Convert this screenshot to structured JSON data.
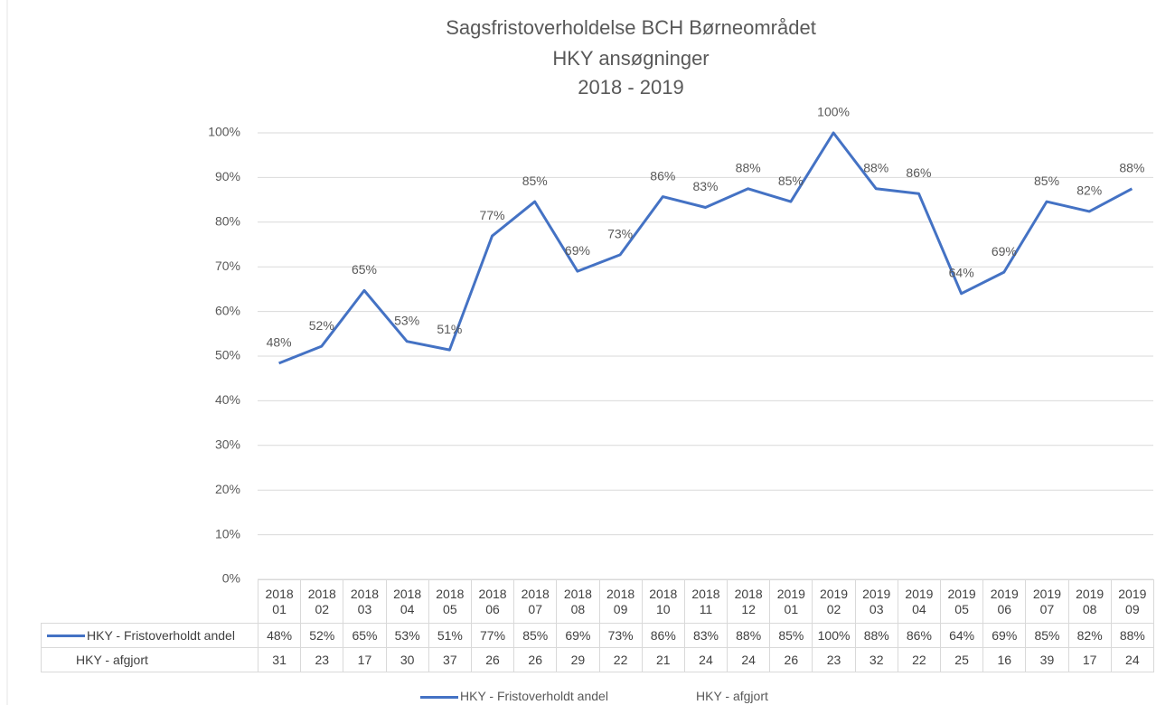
{
  "chart_data": {
    "type": "line",
    "title": [
      "Sagsfristoverholdelse BCH Børneområdet",
      "HKY ansøgninger",
      "2018 - 2019"
    ],
    "categories": [
      "2018 01",
      "2018 02",
      "2018 03",
      "2018 04",
      "2018 05",
      "2018 06",
      "2018 07",
      "2018 08",
      "2018 09",
      "2018 10",
      "2018 11",
      "2018 12",
      "2019 01",
      "2019 02",
      "2019 03",
      "2019 04",
      "2019 05",
      "2019 06",
      "2019 07",
      "2019 08",
      "2019 09"
    ],
    "series": [
      {
        "name": "HKY - Fristoverholdt andel",
        "color": "#4472c4",
        "values": [
          48.4,
          52.2,
          64.7,
          53.3,
          51.4,
          76.9,
          84.6,
          69.0,
          72.7,
          85.7,
          83.3,
          87.5,
          84.6,
          100,
          87.5,
          86.4,
          64.0,
          68.8,
          84.6,
          82.4,
          87.5
        ],
        "value_labels": [
          "48%",
          "52%",
          "65%",
          "53%",
          "51%",
          "77%",
          "85%",
          "69%",
          "73%",
          "86%",
          "83%",
          "88%",
          "85%",
          "100%",
          "88%",
          "86%",
          "64%",
          "69%",
          "85%",
          "82%",
          "88%"
        ]
      },
      {
        "name": "HKY - afgjort",
        "values": [
          31,
          23,
          17,
          30,
          37,
          26,
          26,
          29,
          22,
          21,
          24,
          24,
          26,
          23,
          32,
          22,
          25,
          16,
          39,
          17,
          24
        ]
      }
    ],
    "ylim": [
      0,
      100
    ],
    "yticks": [
      {
        "value": 0,
        "label": "0%"
      },
      {
        "value": 10,
        "label": "10%"
      },
      {
        "value": 20,
        "label": "20%"
      },
      {
        "value": 30,
        "label": "30%"
      },
      {
        "value": 40,
        "label": "40%"
      },
      {
        "value": 50,
        "label": "50%"
      },
      {
        "value": 60,
        "label": "60%"
      },
      {
        "value": 70,
        "label": "70%"
      },
      {
        "value": 80,
        "label": "80%"
      },
      {
        "value": 90,
        "label": "90%"
      },
      {
        "value": 100,
        "label": "100%"
      }
    ],
    "grid": true,
    "data_table": true
  }
}
